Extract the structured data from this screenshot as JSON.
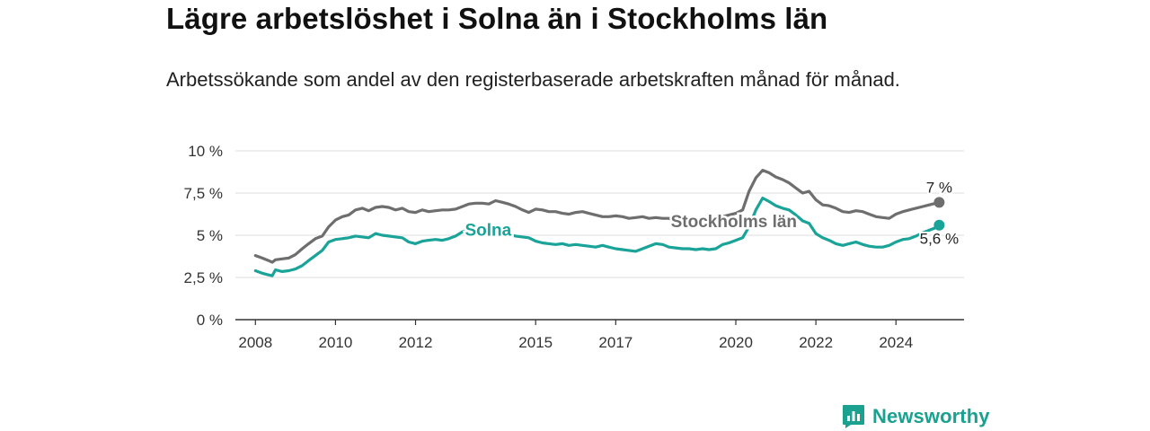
{
  "header": {
    "title": "Lägre arbetslöshet i Solna än i Stockholms län",
    "subtitle": "Arbetssökande som andel av den registerbaserade arbetskraften månad för månad."
  },
  "brand": {
    "name": "Newsworthy",
    "icon": "newsworthy-logo-icon",
    "color": "#1aa18f"
  },
  "chart_data": {
    "type": "line",
    "title": "Lägre arbetslöshet i Solna än i Stockholms län",
    "subtitle": "Arbetssökande som andel av den registerbaserade arbetskraften månad för månad.",
    "xlabel": "",
    "ylabel": "",
    "xlim": [
      2007.5,
      2025.7
    ],
    "ylim": [
      0,
      10
    ],
    "grid": true,
    "y_ticks": [
      {
        "value": 0,
        "label": "0 %"
      },
      {
        "value": 2.5,
        "label": "2,5 %"
      },
      {
        "value": 5,
        "label": "5 %"
      },
      {
        "value": 7.5,
        "label": "7,5 %"
      },
      {
        "value": 10,
        "label": "10 %"
      }
    ],
    "x_ticks": [
      {
        "value": 2008,
        "label": "2008"
      },
      {
        "value": 2010,
        "label": "2010"
      },
      {
        "value": 2012,
        "label": "2012"
      },
      {
        "value": 2015,
        "label": "2015"
      },
      {
        "value": 2017,
        "label": "2017"
      },
      {
        "value": 2020,
        "label": "2020"
      },
      {
        "value": 2022,
        "label": "2022"
      },
      {
        "value": 2024,
        "label": "2024"
      }
    ],
    "series": [
      {
        "name": "Stockholms län",
        "color": "#6e6e6e",
        "end_label": "7 %",
        "points": [
          [
            2008.0,
            3.8
          ],
          [
            2008.17,
            3.65
          ],
          [
            2008.33,
            3.5
          ],
          [
            2008.42,
            3.4
          ],
          [
            2008.5,
            3.55
          ],
          [
            2008.67,
            3.6
          ],
          [
            2008.83,
            3.65
          ],
          [
            2009.0,
            3.85
          ],
          [
            2009.17,
            4.2
          ],
          [
            2009.33,
            4.5
          ],
          [
            2009.5,
            4.8
          ],
          [
            2009.67,
            4.95
          ],
          [
            2009.83,
            5.5
          ],
          [
            2010.0,
            5.9
          ],
          [
            2010.17,
            6.1
          ],
          [
            2010.33,
            6.2
          ],
          [
            2010.5,
            6.5
          ],
          [
            2010.67,
            6.6
          ],
          [
            2010.83,
            6.45
          ],
          [
            2011.0,
            6.65
          ],
          [
            2011.17,
            6.7
          ],
          [
            2011.33,
            6.65
          ],
          [
            2011.5,
            6.5
          ],
          [
            2011.67,
            6.6
          ],
          [
            2011.83,
            6.4
          ],
          [
            2012.0,
            6.35
          ],
          [
            2012.17,
            6.5
          ],
          [
            2012.33,
            6.4
          ],
          [
            2012.5,
            6.45
          ],
          [
            2012.67,
            6.5
          ],
          [
            2012.83,
            6.5
          ],
          [
            2013.0,
            6.55
          ],
          [
            2013.17,
            6.7
          ],
          [
            2013.33,
            6.85
          ],
          [
            2013.5,
            6.9
          ],
          [
            2013.67,
            6.9
          ],
          [
            2013.83,
            6.85
          ],
          [
            2014.0,
            7.05
          ],
          [
            2014.17,
            6.95
          ],
          [
            2014.33,
            6.85
          ],
          [
            2014.5,
            6.7
          ],
          [
            2014.67,
            6.5
          ],
          [
            2014.83,
            6.35
          ],
          [
            2015.0,
            6.55
          ],
          [
            2015.17,
            6.5
          ],
          [
            2015.33,
            6.4
          ],
          [
            2015.5,
            6.4
          ],
          [
            2015.67,
            6.3
          ],
          [
            2015.83,
            6.25
          ],
          [
            2016.0,
            6.35
          ],
          [
            2016.17,
            6.4
          ],
          [
            2016.33,
            6.3
          ],
          [
            2016.5,
            6.2
          ],
          [
            2016.67,
            6.1
          ],
          [
            2016.83,
            6.1
          ],
          [
            2017.0,
            6.15
          ],
          [
            2017.17,
            6.1
          ],
          [
            2017.33,
            6.0
          ],
          [
            2017.5,
            6.05
          ],
          [
            2017.67,
            6.1
          ],
          [
            2017.83,
            6.0
          ],
          [
            2018.0,
            6.05
          ],
          [
            2018.17,
            6.0
          ],
          [
            2018.33,
            6.0
          ],
          [
            2018.5,
            5.85
          ],
          [
            2018.67,
            5.9
          ],
          [
            2018.83,
            5.9
          ],
          [
            2019.0,
            5.95
          ],
          [
            2019.17,
            5.9
          ],
          [
            2019.33,
            5.95
          ],
          [
            2019.5,
            6.0
          ],
          [
            2019.67,
            6.1
          ],
          [
            2019.83,
            6.2
          ],
          [
            2020.0,
            6.3
          ],
          [
            2020.17,
            6.5
          ],
          [
            2020.33,
            7.6
          ],
          [
            2020.5,
            8.4
          ],
          [
            2020.67,
            8.85
          ],
          [
            2020.83,
            8.7
          ],
          [
            2021.0,
            8.45
          ],
          [
            2021.17,
            8.3
          ],
          [
            2021.33,
            8.1
          ],
          [
            2021.5,
            7.8
          ],
          [
            2021.67,
            7.5
          ],
          [
            2021.83,
            7.6
          ],
          [
            2022.0,
            7.1
          ],
          [
            2022.17,
            6.8
          ],
          [
            2022.33,
            6.75
          ],
          [
            2022.5,
            6.6
          ],
          [
            2022.67,
            6.4
          ],
          [
            2022.83,
            6.35
          ],
          [
            2023.0,
            6.45
          ],
          [
            2023.17,
            6.4
          ],
          [
            2023.33,
            6.25
          ],
          [
            2023.5,
            6.1
          ],
          [
            2023.67,
            6.05
          ],
          [
            2023.83,
            6.0
          ],
          [
            2024.0,
            6.25
          ],
          [
            2024.17,
            6.4
          ],
          [
            2024.33,
            6.5
          ],
          [
            2024.5,
            6.6
          ],
          [
            2024.67,
            6.7
          ],
          [
            2024.83,
            6.8
          ],
          [
            2025.0,
            6.9
          ],
          [
            2025.08,
            6.95
          ]
        ]
      },
      {
        "name": "Solna",
        "color": "#1aa398",
        "end_label": "5,6 %",
        "points": [
          [
            2008.0,
            2.9
          ],
          [
            2008.17,
            2.75
          ],
          [
            2008.33,
            2.65
          ],
          [
            2008.42,
            2.6
          ],
          [
            2008.5,
            2.95
          ],
          [
            2008.67,
            2.85
          ],
          [
            2008.83,
            2.9
          ],
          [
            2009.0,
            3.0
          ],
          [
            2009.17,
            3.2
          ],
          [
            2009.33,
            3.5
          ],
          [
            2009.5,
            3.8
          ],
          [
            2009.67,
            4.1
          ],
          [
            2009.83,
            4.6
          ],
          [
            2010.0,
            4.75
          ],
          [
            2010.17,
            4.8
          ],
          [
            2010.33,
            4.85
          ],
          [
            2010.5,
            4.95
          ],
          [
            2010.67,
            4.9
          ],
          [
            2010.83,
            4.85
          ],
          [
            2011.0,
            5.1
          ],
          [
            2011.17,
            5.0
          ],
          [
            2011.33,
            4.95
          ],
          [
            2011.5,
            4.9
          ],
          [
            2011.67,
            4.85
          ],
          [
            2011.83,
            4.6
          ],
          [
            2012.0,
            4.5
          ],
          [
            2012.17,
            4.65
          ],
          [
            2012.33,
            4.7
          ],
          [
            2012.5,
            4.75
          ],
          [
            2012.67,
            4.7
          ],
          [
            2012.83,
            4.8
          ],
          [
            2013.0,
            4.95
          ],
          [
            2013.17,
            5.2
          ],
          [
            2013.33,
            5.35
          ],
          [
            2013.5,
            5.3
          ],
          [
            2013.67,
            5.35
          ],
          [
            2013.83,
            5.25
          ],
          [
            2014.0,
            5.3
          ],
          [
            2014.17,
            5.2
          ],
          [
            2014.33,
            5.05
          ],
          [
            2014.5,
            4.95
          ],
          [
            2014.67,
            4.9
          ],
          [
            2014.83,
            4.85
          ],
          [
            2015.0,
            4.65
          ],
          [
            2015.17,
            4.55
          ],
          [
            2015.33,
            4.5
          ],
          [
            2015.5,
            4.45
          ],
          [
            2015.67,
            4.5
          ],
          [
            2015.83,
            4.4
          ],
          [
            2016.0,
            4.45
          ],
          [
            2016.17,
            4.4
          ],
          [
            2016.33,
            4.35
          ],
          [
            2016.5,
            4.3
          ],
          [
            2016.67,
            4.4
          ],
          [
            2016.83,
            4.3
          ],
          [
            2017.0,
            4.2
          ],
          [
            2017.17,
            4.15
          ],
          [
            2017.33,
            4.1
          ],
          [
            2017.5,
            4.05
          ],
          [
            2017.67,
            4.2
          ],
          [
            2017.83,
            4.35
          ],
          [
            2018.0,
            4.5
          ],
          [
            2018.17,
            4.45
          ],
          [
            2018.33,
            4.3
          ],
          [
            2018.5,
            4.25
          ],
          [
            2018.67,
            4.2
          ],
          [
            2018.83,
            4.2
          ],
          [
            2019.0,
            4.15
          ],
          [
            2019.17,
            4.2
          ],
          [
            2019.33,
            4.15
          ],
          [
            2019.5,
            4.2
          ],
          [
            2019.67,
            4.45
          ],
          [
            2019.83,
            4.55
          ],
          [
            2020.0,
            4.7
          ],
          [
            2020.17,
            4.85
          ],
          [
            2020.33,
            5.5
          ],
          [
            2020.5,
            6.5
          ],
          [
            2020.67,
            7.2
          ],
          [
            2020.83,
            7.0
          ],
          [
            2021.0,
            6.75
          ],
          [
            2021.17,
            6.6
          ],
          [
            2021.33,
            6.5
          ],
          [
            2021.5,
            6.2
          ],
          [
            2021.67,
            5.85
          ],
          [
            2021.83,
            5.7
          ],
          [
            2022.0,
            5.1
          ],
          [
            2022.17,
            4.85
          ],
          [
            2022.33,
            4.7
          ],
          [
            2022.5,
            4.5
          ],
          [
            2022.67,
            4.4
          ],
          [
            2022.83,
            4.5
          ],
          [
            2023.0,
            4.6
          ],
          [
            2023.17,
            4.45
          ],
          [
            2023.33,
            4.35
          ],
          [
            2023.5,
            4.3
          ],
          [
            2023.67,
            4.3
          ],
          [
            2023.83,
            4.4
          ],
          [
            2024.0,
            4.6
          ],
          [
            2024.17,
            4.75
          ],
          [
            2024.33,
            4.8
          ],
          [
            2024.5,
            4.95
          ],
          [
            2024.67,
            5.15
          ],
          [
            2024.83,
            5.3
          ],
          [
            2025.0,
            5.45
          ],
          [
            2025.08,
            5.6
          ]
        ]
      }
    ],
    "annotations": [
      {
        "text": "Solna",
        "series": "Solna",
        "x": 2013.5,
        "y": 5.35
      },
      {
        "text": "Stockholms län",
        "series": "Stockholms län",
        "x": 2018.6,
        "y": 5.85
      }
    ]
  }
}
